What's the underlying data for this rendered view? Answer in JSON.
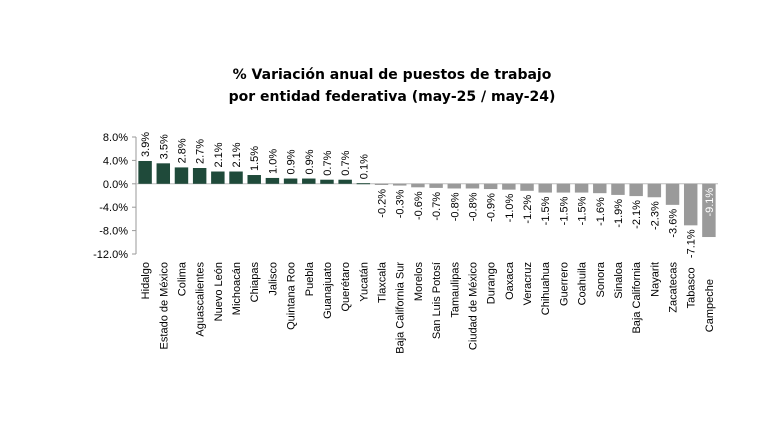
{
  "chart_data": {
    "type": "bar",
    "title_line1": "% Variación anual de puestos de trabajo",
    "title_line2": "por entidad federativa (may-25 / may-24)",
    "xlabel": "",
    "ylabel": "",
    "ylim": [
      -12,
      8
    ],
    "yticks": [
      8,
      4,
      0,
      -4,
      -8,
      -12
    ],
    "ytick_labels": [
      "8.0%",
      "4.0%",
      "0.0%",
      "-4.0%",
      "-8.0%",
      "-12.0%"
    ],
    "grid": false,
    "legend": "none",
    "positive_color": "#1f4a3a",
    "negative_color": "#9a9a9a",
    "categories": [
      "Hidalgo",
      "Estado de México",
      "Colima",
      "Aguascalientes",
      "Nuevo León",
      "Michoacán",
      "Chiapas",
      "Jalisco",
      "Quintana Roo",
      "Puebla",
      "Guanajuato",
      "Querétaro",
      "Yucatán",
      "Tlaxcala",
      "Baja California Sur",
      "Morelos",
      "San Luis Potosí",
      "Tamaulipas",
      "Ciudad de México",
      "Durango",
      "Oaxaca",
      "Veracruz",
      "Chihuahua",
      "Guerrero",
      "Coahuila",
      "Sonora",
      "Sinaloa",
      "Baja California",
      "Nayarit",
      "Zacatecas",
      "Tabasco",
      "Campeche"
    ],
    "values": [
      3.9,
      3.5,
      2.8,
      2.7,
      2.1,
      2.1,
      1.5,
      1.0,
      0.9,
      0.9,
      0.7,
      0.7,
      0.1,
      -0.2,
      -0.3,
      -0.6,
      -0.7,
      -0.8,
      -0.8,
      -0.9,
      -1.0,
      -1.2,
      -1.5,
      -1.5,
      -1.5,
      -1.6,
      -1.9,
      -2.1,
      -2.3,
      -3.6,
      -7.1,
      -9.1
    ],
    "value_labels": [
      "3.9%",
      "3.5%",
      "2.8%",
      "2.7%",
      "2.1%",
      "2.1%",
      "1.5%",
      "1.0%",
      "0.9%",
      "0.9%",
      "0.7%",
      "0.7%",
      "0.1%",
      "-0.2%",
      "-0.3%",
      "-0.6%",
      "-0.7%",
      "-0.8%",
      "-0.8%",
      "-0.9%",
      "-1.0%",
      "-1.2%",
      "-1.5%",
      "-1.5%",
      "-1.5%",
      "-1.6%",
      "-1.9%",
      "-2.1%",
      "-2.3%",
      "-3.6%",
      "-7.1%",
      "-9.1%"
    ]
  }
}
